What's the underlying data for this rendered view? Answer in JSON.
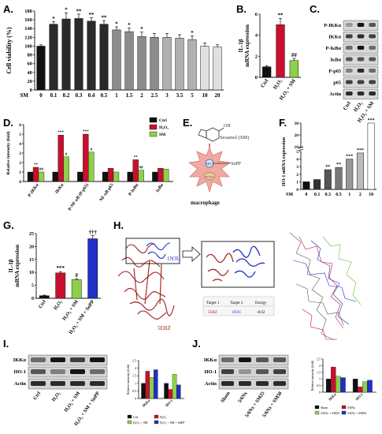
{
  "panels": {
    "A": "A.",
    "B": "B.",
    "C": "C.",
    "D": "D.",
    "E": "E.",
    "F": "F.",
    "G": "G.",
    "H": "H.",
    "I": "I.",
    "J": "J."
  },
  "colors": {
    "black": "#111111",
    "gray": "#8c8c8c",
    "lightgray": "#e0e0e0",
    "red": "#c8102e",
    "green": "#8ed04a",
    "blue": "#1f2fc8",
    "dark_red": "#8b1a1a",
    "navy": "#1c2a9c",
    "sm_gray": "#b0b0b0"
  },
  "chart_data": [
    {
      "id": "A",
      "type": "bar",
      "ylabel": "Cell viability (%)",
      "ylim": [
        0,
        180
      ],
      "yticks": [
        0,
        20,
        40,
        60,
        80,
        100,
        120,
        140,
        160,
        180
      ],
      "x_prefix": "SM",
      "categories": [
        "0",
        "0.1",
        "0.2",
        "0.3",
        "0.4",
        "0.5",
        "1",
        "1.5",
        "2",
        "2.5",
        "3",
        "3.5",
        "5",
        "10",
        "20"
      ],
      "values": [
        100,
        150,
        162,
        163,
        157,
        150,
        137,
        133,
        122,
        120,
        120,
        118,
        115,
        100,
        98
      ],
      "errors": [
        3,
        6,
        14,
        10,
        8,
        8,
        7,
        8,
        10,
        9,
        9,
        8,
        8,
        7,
        5
      ],
      "sig": [
        "",
        "*",
        "*",
        "**",
        "**",
        "**",
        "*",
        "*",
        "*",
        "",
        "",
        "",
        "*",
        "",
        ""
      ]
    },
    {
      "id": "B",
      "type": "bar",
      "ylabel": "IL-1β\nmRNA expression",
      "ylim": [
        0,
        6
      ],
      "yticks": [
        0,
        2,
        4,
        6
      ],
      "categories": [
        "Ctrl",
        "H₂O₂",
        "H₂O₂ + SM"
      ],
      "values": [
        1.0,
        5.0,
        1.6
      ],
      "errors": [
        0.1,
        0.6,
        0.2
      ],
      "sig": [
        "",
        "**",
        "##"
      ]
    },
    {
      "id": "C",
      "type": "blot",
      "rows": [
        "P-IKKα",
        "IKKα",
        "P-IκBα",
        "IκBα",
        "P-p65",
        "p65",
        "Actin"
      ],
      "lanes": [
        "Ctrl",
        "H₂O₂",
        "H₂O₂ + SM"
      ]
    },
    {
      "id": "D",
      "type": "bar",
      "ylabel": "Relative intensity (fold)",
      "ylim": [
        0,
        6
      ],
      "yticks": [
        0,
        1,
        2,
        3,
        4,
        5,
        6
      ],
      "categories": [
        "P-IKKα",
        "IKKα",
        "P-NF-κB (P-p65)",
        "NF-κB p65",
        "P-IκBα",
        "IκBα"
      ],
      "series": [
        {
          "name": "Ctrl",
          "values": [
            1,
            1,
            1,
            1,
            1,
            1
          ]
        },
        {
          "name": "H₂O₂",
          "values": [
            1.5,
            4.9,
            5.0,
            1.4,
            2.3,
            1.4
          ]
        },
        {
          "name": "SM",
          "values": [
            1.0,
            2.6,
            3.1,
            1.0,
            1.2,
            1.3
          ]
        }
      ],
      "sig": [
        [
          "",
          "**",
          "##"
        ],
        [
          "",
          "***",
          "#"
        ],
        [
          "",
          "***",
          "#"
        ],
        [
          "",
          "",
          ""
        ],
        [
          "",
          "**",
          "##"
        ],
        [
          "",
          "",
          ""
        ]
      ]
    },
    {
      "id": "F",
      "type": "bar",
      "ylabel": "HO-1 mRNA expression",
      "x_prefix": "SM",
      "categories": [
        "0",
        "0.1",
        "0.3",
        "0.5",
        "1",
        "2",
        "10"
      ],
      "values": [
        1,
        1.3,
        2.6,
        2.9,
        4.0,
        4.8,
        30
      ],
      "yticks": [
        "0",
        "1",
        "2",
        "3",
        "4",
        "5",
        "10",
        "20",
        "30"
      ],
      "sig": [
        "",
        "",
        "**",
        "**",
        "***",
        "***",
        "***"
      ]
    },
    {
      "id": "G",
      "type": "bar",
      "ylabel": "IL-1β\nmRNA expression",
      "ylim": [
        0,
        25
      ],
      "yticks": [
        0,
        5,
        10,
        15,
        20,
        25
      ],
      "categories": [
        "Ctrl",
        "H₂O₂",
        "H₂O₂ + SM",
        "H₂O₂ + SM + SnPP"
      ],
      "values": [
        1.0,
        9.8,
        7.2,
        23.0
      ],
      "errors": [
        0.2,
        0.5,
        0.4,
        1.2
      ],
      "sig": [
        "",
        "***",
        "#",
        "†††"
      ]
    },
    {
      "id": "I",
      "type": "bar",
      "categories": [
        "IKKα",
        "HO-1"
      ],
      "series": [
        {
          "name": "Ctrl",
          "values": [
            1.0,
            1.0
          ]
        },
        {
          "name": "H₂O₂",
          "values": [
            1.8,
            0.6
          ]
        },
        {
          "name": "H₂O₂ + SM",
          "values": [
            1.4,
            1.6
          ]
        },
        {
          "name": "H₂O₂ + SM + SnPP",
          "values": [
            1.9,
            0.9
          ]
        }
      ],
      "ylim": [
        0,
        2.5
      ],
      "ylabel": "Relative intensity (fold)"
    },
    {
      "id": "J",
      "type": "bar",
      "categories": [
        "IKKα",
        "HO-1"
      ],
      "series": [
        {
          "name": "Sham",
          "values": [
            1.0,
            1.0
          ]
        },
        {
          "name": "5/6Nx",
          "values": [
            1.9,
            0.4
          ]
        },
        {
          "name": "5/6Nx + SM25",
          "values": [
            1.2,
            0.8
          ]
        },
        {
          "name": "5/6Nx + SM50",
          "values": [
            1.1,
            0.9
          ]
        }
      ],
      "ylim": [
        0,
        2.5
      ],
      "ylabel": "Relative intensity (fold)"
    }
  ],
  "E": {
    "title": "Sesamol (SM)",
    "inhibitor": "SnPP",
    "receptor": "HO-1",
    "nucleus": "Nucleus",
    "cell": "macrophage"
  },
  "H": {
    "protein_a": "1N3U",
    "protein_b": "5EBZ",
    "table_headers": [
      "Target 1",
      "Target 2",
      "Energy"
    ],
    "table_row": [
      "5EBZ",
      "1N3U",
      "-8.62"
    ]
  },
  "I_blot": {
    "rows": [
      "IKKα",
      "HO-1",
      "Actin"
    ],
    "lanes": [
      "Ctrl",
      "H₂O₂",
      "H₂O₂ + SM",
      "H₂O₂ + SM + SnPP"
    ]
  },
  "J_blot": {
    "rows": [
      "IKKα",
      "HO-1",
      "Actin"
    ],
    "lanes": [
      "Sham",
      "5/6Nx",
      "5/6Nx + SM25",
      "5/6Nx + SM50"
    ]
  }
}
